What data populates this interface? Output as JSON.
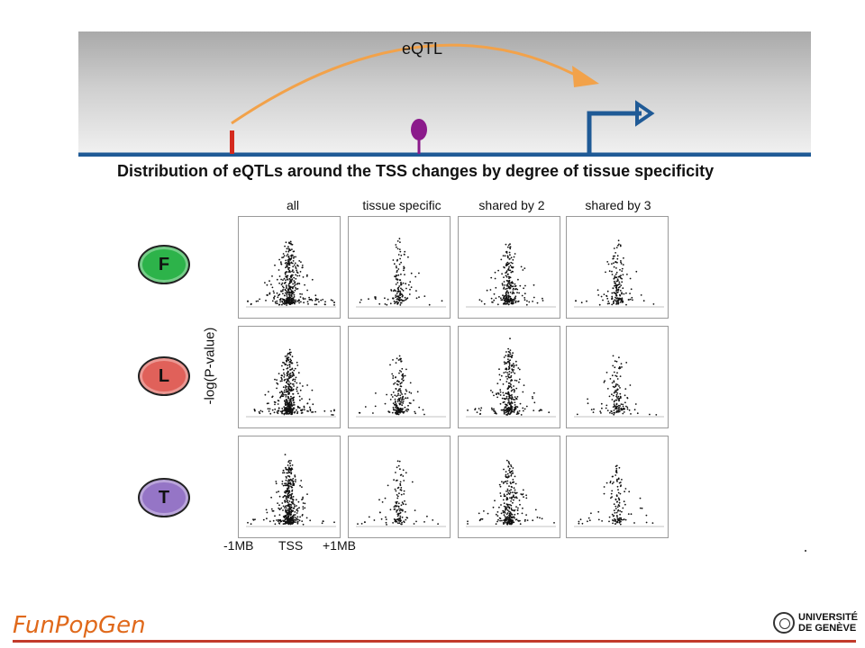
{
  "banner": {
    "label": "eQTL",
    "colors": {
      "arc": "#f2a24a",
      "snp": "#d42a1e",
      "tf": "#8b1a8b",
      "tss": "#1f5a96",
      "dna": "#1f5a96"
    }
  },
  "headline": "Distribution of eQTLs around the TSS changes by degree of tissue specificity",
  "columns": [
    "all",
    "tissue specific",
    "shared by 2",
    "shared by 3"
  ],
  "tissues": [
    {
      "letter": "F",
      "color": "#2db34a"
    },
    {
      "letter": "L",
      "color": "#e0615a"
    },
    {
      "letter": "T",
      "color": "#9575c6"
    }
  ],
  "y_axis_label": "-log(P-value)",
  "x_axis_labels": {
    "left": "-1MB",
    "center": "TSS",
    "right": "+1MB"
  },
  "chart_data": {
    "type": "scatter",
    "panels_rows": 3,
    "panels_cols": 4,
    "x_range": [
      -1,
      1
    ],
    "description_units": "MB from TSS"
  },
  "footer": {
    "left_logo": "FunPopGen",
    "right_logo_line1": "UNIVERSITÉ",
    "right_logo_line2": "DE GENÈVE"
  }
}
